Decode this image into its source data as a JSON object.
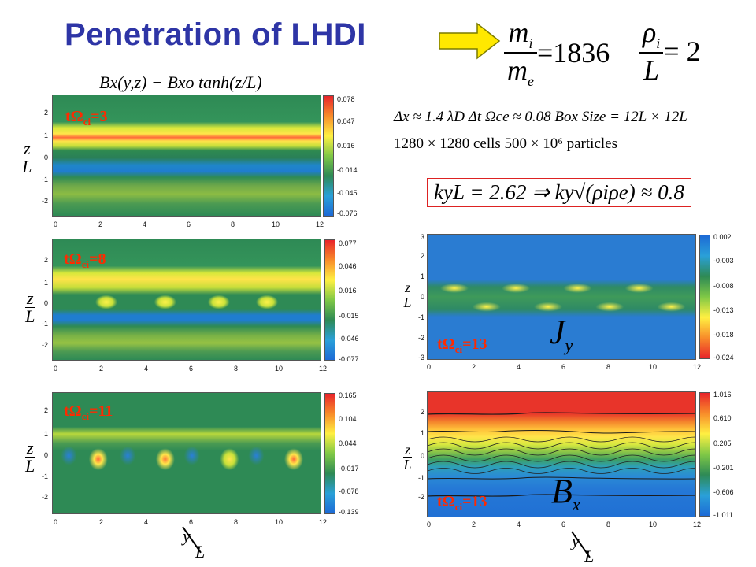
{
  "title": "Penetration of LHDI",
  "ratios": {
    "mi": "m",
    "mi_sub": "i",
    "me": "m",
    "me_sub": "e",
    "ratio1": "=1836",
    "rho": "ρ",
    "rho_sub": "i",
    "L": "L",
    "ratio2": "= 2"
  },
  "bx_formula": "Bx(y,z) − Bxo tanh(z/L)",
  "params": {
    "line1": "Δx ≈ 1.4 λD    Δt Ωce ≈ 0.08    Box Size = 12L × 12L",
    "line2": "1280 × 1280 cells        500 × 10⁶ particles"
  },
  "kyL": "kyL = 2.62   ⇒   ky√(ρiρe) ≈ 0.8",
  "axis": {
    "z_num": "z",
    "z_den": "L",
    "y_num": "y",
    "y_den": "L",
    "y_ticks": [
      "0",
      "2",
      "4",
      "6",
      "8",
      "10",
      "12"
    ]
  },
  "plots": [
    {
      "label_t": "tΩ",
      "label_sub": "ci",
      "label_val": "=3",
      "z_ticks": [
        "2",
        "1",
        "0",
        "-1",
        "-2"
      ],
      "colorbar": [
        "0.078",
        "0.047",
        "0.016",
        "-0.014",
        "-0.045",
        "-0.076"
      ]
    },
    {
      "label_t": "tΩ",
      "label_sub": "ci",
      "label_val": "=8",
      "z_ticks": [
        "2",
        "1",
        "0",
        "-1",
        "-2"
      ],
      "colorbar": [
        "0.077",
        "0.046",
        "0.016",
        "-0.015",
        "-0.046",
        "-0.077"
      ]
    },
    {
      "label_t": "tΩ",
      "label_sub": "ci",
      "label_val": "=11",
      "z_ticks": [
        "2",
        "1",
        "0",
        "-1",
        "-2"
      ],
      "colorbar": [
        "0.165",
        "0.104",
        "0.044",
        "-0.017",
        "-0.078",
        "-0.139"
      ]
    },
    {
      "label_t": "tΩ",
      "label_sub": "ci",
      "label_val": "=13",
      "field": "J",
      "field_sub": "y",
      "z_ticks": [
        "3",
        "2",
        "1",
        "0",
        "-1",
        "-2",
        "-3"
      ],
      "colorbar": [
        "0.002",
        "-0.003",
        "-0.008",
        "-0.013",
        "-0.018",
        "-0.024"
      ]
    },
    {
      "label_t": "tΩ",
      "label_sub": "ci",
      "label_val": "=13",
      "field": "B",
      "field_sub": "x",
      "z_ticks": [
        "2",
        "1",
        "0",
        "-1",
        "-2"
      ],
      "colorbar": [
        "1.016",
        "0.610",
        "0.205",
        "-0.201",
        "-0.606",
        "-1.011"
      ]
    }
  ]
}
